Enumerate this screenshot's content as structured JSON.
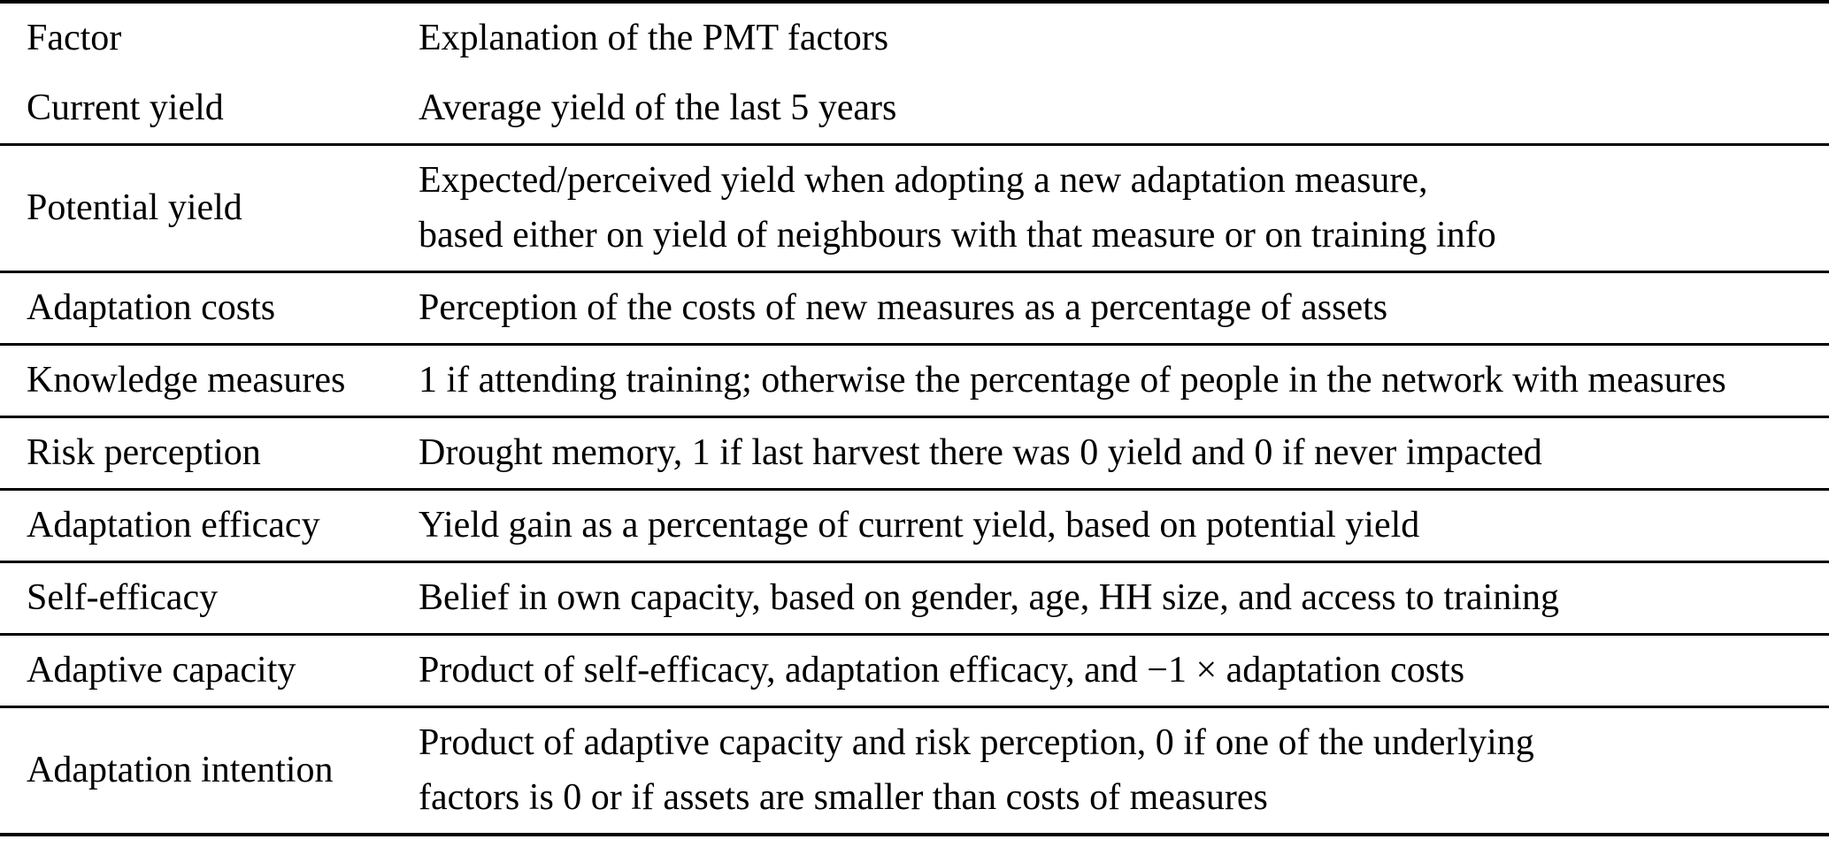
{
  "page": {
    "background_color": "#ffffff",
    "text_color": "#000000",
    "rule_color": "#000000"
  },
  "table": {
    "columns": [
      "Factor",
      "Explanation of the PMT factors"
    ],
    "rows": [
      {
        "factor": "Current yield",
        "explanation": "Average yield of the last 5 years"
      },
      {
        "factor": "Potential yield",
        "explanation": "Expected/perceived yield when adopting a new adaptation measure,\nbased either on yield of neighbours with that measure or on training info"
      },
      {
        "factor": "Adaptation costs",
        "explanation": "Perception of the costs of new measures as a percentage of assets"
      },
      {
        "factor": "Knowledge measures",
        "explanation": "1 if attending training; otherwise the percentage of people in the network with measures"
      },
      {
        "factor": "Risk perception",
        "explanation": "Drought memory, 1 if last harvest there was 0 yield and 0 if never impacted"
      },
      {
        "factor": "Adaptation efficacy",
        "explanation": "Yield gain as a percentage of current yield, based on potential yield"
      },
      {
        "factor": "Self-efficacy",
        "explanation": "Belief in own capacity, based on gender, age, HH size, and access to training"
      },
      {
        "factor": "Adaptive capacity",
        "explanation": "Product of self-efficacy, adaptation efficacy, and −1 × adaptation costs"
      },
      {
        "factor": "Adaptation intention",
        "explanation": "Product of adaptive capacity and risk perception, 0 if one of the underlying\nfactors is 0 or if assets are smaller than costs of measures"
      }
    ]
  }
}
